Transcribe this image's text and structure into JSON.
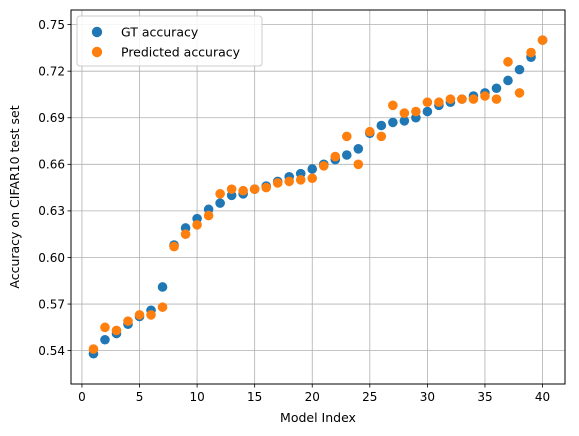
{
  "chart_data": {
    "type": "scatter",
    "xlabel": "Model Index",
    "ylabel": "Accuracy on CIFAR10 test set",
    "xlim": [
      -0.95,
      41.95
    ],
    "ylim": [
      0.5185,
      0.7594
    ],
    "xticks": [
      0,
      5,
      10,
      15,
      20,
      25,
      30,
      35,
      40
    ],
    "yticks": [
      0.54,
      0.57,
      0.6,
      0.63,
      0.66,
      0.69,
      0.72,
      0.75
    ],
    "xtick_labels": [
      "0",
      "5",
      "10",
      "15",
      "20",
      "25",
      "30",
      "35",
      "40"
    ],
    "ytick_labels": [
      "0.54",
      "0.57",
      "0.60",
      "0.63",
      "0.66",
      "0.69",
      "0.72",
      "0.75"
    ],
    "grid": true,
    "legend_position": "upper-left",
    "series": [
      {
        "name": "GT accuracy",
        "color": "#1f77b4",
        "x": [
          1,
          2,
          3,
          4,
          5,
          6,
          7,
          8,
          9,
          10,
          11,
          12,
          13,
          14,
          15,
          16,
          17,
          18,
          19,
          20,
          21,
          22,
          23,
          24,
          25,
          26,
          27,
          28,
          29,
          30,
          31,
          32,
          33,
          34,
          35,
          36,
          37,
          38,
          39,
          40
        ],
        "y": [
          0.538,
          0.547,
          0.551,
          0.557,
          0.562,
          0.566,
          0.581,
          0.608,
          0.619,
          0.625,
          0.631,
          0.635,
          0.64,
          0.641,
          0.644,
          0.646,
          0.649,
          0.652,
          0.654,
          0.657,
          0.66,
          0.663,
          0.666,
          0.67,
          0.68,
          0.685,
          0.687,
          0.688,
          0.69,
          0.694,
          0.698,
          0.7,
          0.702,
          0.704,
          0.706,
          0.709,
          0.714,
          0.721,
          0.729,
          0.74
        ]
      },
      {
        "name": "Predicted accuracy",
        "color": "#ff7f0e",
        "x": [
          1,
          2,
          3,
          4,
          5,
          6,
          7,
          8,
          9,
          10,
          11,
          12,
          13,
          14,
          15,
          16,
          17,
          18,
          19,
          20,
          21,
          22,
          23,
          24,
          25,
          26,
          27,
          28,
          29,
          30,
          31,
          32,
          33,
          34,
          35,
          36,
          37,
          38,
          39,
          40
        ],
        "y": [
          0.541,
          0.555,
          0.553,
          0.559,
          0.563,
          0.563,
          0.568,
          0.607,
          0.615,
          0.621,
          0.627,
          0.641,
          0.644,
          0.643,
          0.644,
          0.645,
          0.648,
          0.649,
          0.65,
          0.651,
          0.659,
          0.665,
          0.678,
          0.66,
          0.681,
          0.678,
          0.698,
          0.693,
          0.694,
          0.7,
          0.7,
          0.702,
          0.702,
          0.702,
          0.704,
          0.702,
          0.726,
          0.706,
          0.732,
          0.74
        ]
      }
    ]
  }
}
